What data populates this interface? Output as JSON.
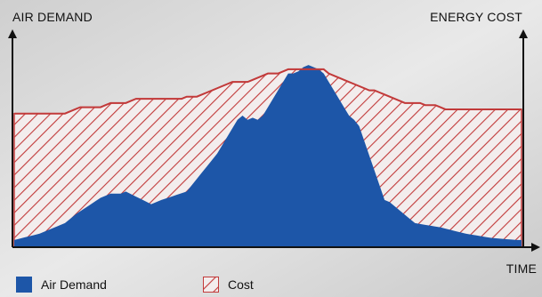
{
  "chart_data": {
    "type": "area",
    "ylabel_left": "AIR DEMAND",
    "ylabel_right": "ENERGY COST",
    "xlabel": "TIME",
    "grid": false,
    "legend_position": "bottom-left",
    "ylim": [
      0,
      100
    ],
    "x": [
      0,
      1,
      2,
      3,
      4,
      5,
      6,
      7,
      8,
      9,
      10,
      11,
      12,
      13,
      14,
      15,
      16,
      17,
      18,
      19,
      20,
      21,
      22,
      23,
      24,
      25,
      26,
      27,
      28,
      29,
      30,
      31,
      32,
      33,
      34,
      35,
      36,
      37,
      38,
      39,
      40,
      41,
      42,
      43,
      44,
      45,
      46,
      47,
      48,
      49,
      50,
      51,
      52,
      53,
      54,
      55,
      56,
      57,
      58,
      59,
      60,
      61,
      62,
      63,
      64,
      65,
      66,
      67,
      68,
      69,
      70,
      71,
      72,
      73,
      74,
      75,
      76,
      77,
      78,
      79,
      80,
      81,
      82,
      83,
      84,
      85,
      86,
      87,
      88,
      89,
      90,
      91,
      92,
      93,
      94,
      95,
      96,
      97,
      98,
      99,
      100
    ],
    "series": [
      {
        "name": "Air Demand",
        "color": "#1d56a8",
        "values": [
          3,
          3.6,
          4.2,
          4.8,
          5.4,
          6,
          7,
          8,
          9,
          10,
          11,
          13,
          15,
          16.6,
          18.2,
          19.8,
          21.4,
          23,
          24,
          25,
          25,
          25,
          26,
          24.8,
          23.6,
          22.4,
          21.2,
          20,
          21,
          22,
          22.8,
          23.6,
          24.4,
          25.2,
          26,
          29,
          32,
          35,
          38,
          41,
          44,
          48,
          52,
          56,
          60,
          62,
          60,
          61,
          60,
          62,
          66,
          70,
          74,
          78,
          82,
          82,
          83,
          85,
          86,
          85,
          84,
          82,
          78,
          74,
          70,
          66,
          62,
          60,
          57,
          50,
          43,
          36,
          29,
          22,
          21,
          19,
          17,
          15,
          13,
          11,
          10.6,
          10.2,
          9.8,
          9.4,
          9,
          8.4,
          7.8,
          7.2,
          6.6,
          6,
          5.6,
          5.2,
          4.8,
          4.4,
          4,
          3.8,
          3.6,
          3.4,
          3.2,
          3,
          3
        ]
      },
      {
        "name": "Cost",
        "color": "#c23a3a",
        "values": [
          63,
          63,
          63,
          63,
          63,
          63,
          63,
          63,
          63,
          63,
          63,
          64,
          65,
          66,
          66,
          66,
          66,
          66,
          67,
          68,
          68,
          68,
          68,
          69,
          70,
          70,
          70,
          70,
          70,
          70,
          70,
          70,
          70,
          70,
          71,
          71,
          71,
          72,
          73,
          74,
          75,
          76,
          77,
          78,
          78,
          78,
          78,
          79,
          80,
          81,
          82,
          82,
          82,
          83,
          84,
          84,
          84,
          84,
          84,
          84,
          84,
          84,
          82,
          81,
          80,
          79,
          78,
          77,
          76,
          75,
          74,
          74,
          73,
          72,
          71,
          70,
          69,
          68,
          68,
          68,
          68,
          67,
          67,
          67,
          66,
          65,
          65,
          65,
          65,
          65,
          65,
          65,
          65,
          65,
          65,
          65,
          65,
          65,
          65,
          65,
          65
        ]
      }
    ]
  },
  "legend": {
    "air_label": "Air Demand",
    "cost_label": "Cost"
  }
}
